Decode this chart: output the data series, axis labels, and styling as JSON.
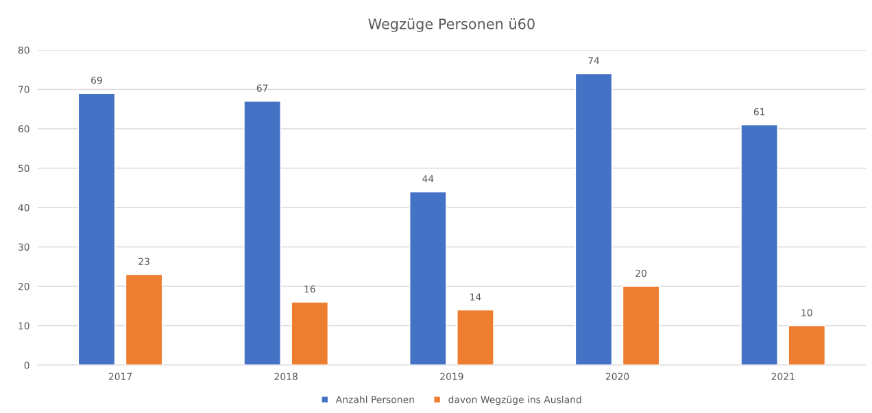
{
  "chart_data": {
    "type": "bar",
    "title": "Wegzüge Personen ü60",
    "categories": [
      "2017",
      "2018",
      "2019",
      "2020",
      "2021"
    ],
    "series": [
      {
        "name": "Anzahl Personen",
        "color": "#4472c4",
        "values": [
          69,
          67,
          44,
          74,
          61
        ]
      },
      {
        "name": "davon Wegzüge ins Ausland",
        "color": "#ed7d31",
        "values": [
          23,
          16,
          14,
          20,
          10
        ]
      }
    ],
    "ylim": [
      0,
      80
    ],
    "yticks": [
      0,
      10,
      20,
      30,
      40,
      50,
      60,
      70,
      80
    ],
    "grid": "y",
    "legend": "bottom",
    "data_labels": true
  }
}
